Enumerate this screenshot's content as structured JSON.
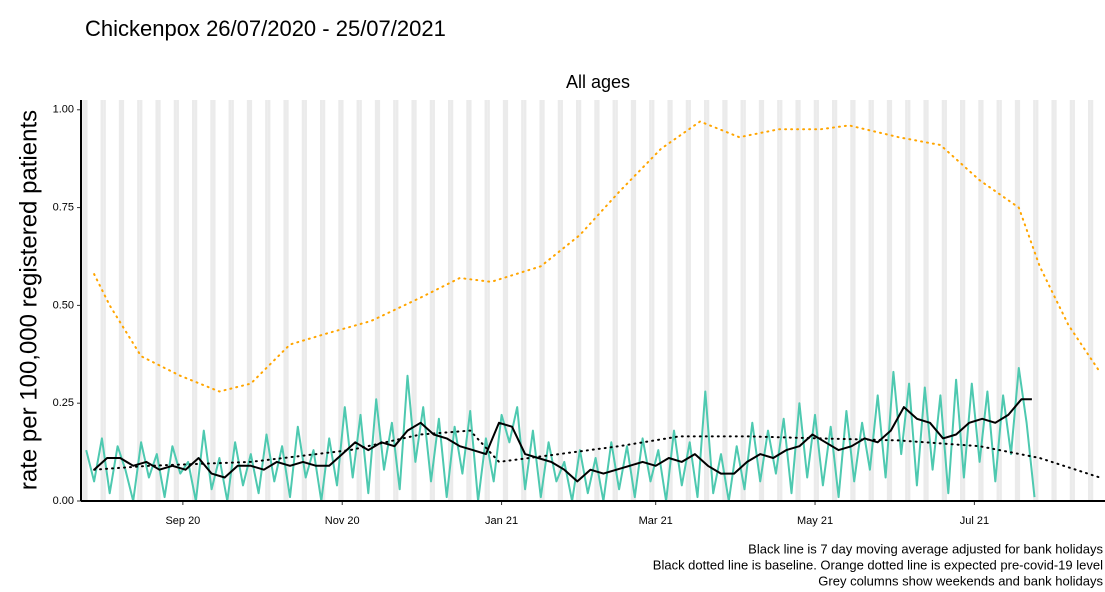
{
  "chart_data": {
    "type": "line",
    "title": "Chickenpox 26/07/2020 - 25/07/2021",
    "facet": "All ages",
    "ylabel": "rate per 100,000 registered patients",
    "notes": [
      "Black line is 7 day moving average adjusted for bank holidays",
      "Black dotted line is baseline. Orange dotted line is expected pre-covid-19 level",
      "Grey columns show weekends and bank holidays"
    ],
    "xlim": [
      -2,
      390
    ],
    "ylim": [
      0,
      1.025
    ],
    "xticks": [
      {
        "value": 37,
        "label": "Sep 20"
      },
      {
        "value": 98,
        "label": "Nov 20"
      },
      {
        "value": 159,
        "label": "Jan 21"
      },
      {
        "value": 218,
        "label": "Mar 21"
      },
      {
        "value": 279,
        "label": "May 21"
      },
      {
        "value": 340,
        "label": "Jul 21"
      }
    ],
    "yticks": [
      {
        "value": 0,
        "label": "0.00"
      },
      {
        "value": 0.25,
        "label": "0.25"
      },
      {
        "value": 0.5,
        "label": "0.50"
      },
      {
        "value": 0.75,
        "label": "0.75"
      },
      {
        "value": 1,
        "label": "1.00"
      }
    ],
    "series": [
      {
        "color": "#4ec9b0",
        "width": 2,
        "style": "solid",
        "x": [
          0,
          3,
          6,
          9,
          12,
          15,
          18,
          21,
          24,
          27,
          30,
          33,
          36,
          39,
          42,
          45,
          48,
          51,
          54,
          57,
          60,
          63,
          66,
          69,
          72,
          75,
          78,
          81,
          84,
          87,
          90,
          93,
          96,
          99,
          102,
          105,
          108,
          111,
          114,
          117,
          120,
          123,
          126,
          129,
          132,
          135,
          138,
          141,
          144,
          147,
          150,
          153,
          156,
          159,
          162,
          165,
          168,
          171,
          174,
          177,
          180,
          183,
          186,
          189,
          192,
          195,
          198,
          201,
          204,
          207,
          210,
          213,
          216,
          219,
          222,
          225,
          228,
          231,
          234,
          237,
          240,
          243,
          246,
          249,
          252,
          255,
          258,
          261,
          264,
          267,
          270,
          273,
          276,
          279,
          282,
          285,
          288,
          291,
          294,
          297,
          300,
          303,
          306,
          309,
          312,
          315,
          318,
          321,
          324,
          327,
          330,
          333,
          336,
          339,
          342,
          345,
          348,
          351,
          354,
          357,
          360,
          363
        ],
        "values": [
          0.13,
          0.05,
          0.16,
          0.02,
          0.14,
          0.08,
          0.0,
          0.15,
          0.06,
          0.12,
          0.01,
          0.14,
          0.07,
          0.1,
          0.0,
          0.18,
          0.03,
          0.11,
          0.0,
          0.15,
          0.04,
          0.12,
          0.02,
          0.17,
          0.05,
          0.14,
          0.01,
          0.19,
          0.06,
          0.13,
          0.0,
          0.16,
          0.04,
          0.24,
          0.06,
          0.22,
          0.02,
          0.26,
          0.08,
          0.2,
          0.03,
          0.32,
          0.1,
          0.24,
          0.05,
          0.21,
          0.01,
          0.19,
          0.07,
          0.23,
          0.0,
          0.16,
          0.05,
          0.22,
          0.15,
          0.24,
          0.03,
          0.18,
          0.01,
          0.15,
          0.05,
          0.1,
          0.0,
          0.13,
          0.02,
          0.11,
          0.0,
          0.15,
          0.03,
          0.14,
          0.01,
          0.16,
          0.05,
          0.13,
          0.0,
          0.18,
          0.04,
          0.15,
          0.01,
          0.28,
          0.02,
          0.12,
          0.0,
          0.14,
          0.03,
          0.2,
          0.05,
          0.18,
          0.07,
          0.21,
          0.02,
          0.25,
          0.06,
          0.22,
          0.04,
          0.19,
          0.01,
          0.23,
          0.05,
          0.2,
          0.08,
          0.27,
          0.06,
          0.33,
          0.12,
          0.3,
          0.04,
          0.29,
          0.08,
          0.27,
          0.02,
          0.31,
          0.06,
          0.3,
          0.1,
          0.28,
          0.05,
          0.27,
          0.12,
          0.34,
          0.2,
          0.01
        ]
      },
      {
        "color": "#000000",
        "width": 2,
        "style": "solid",
        "x": [
          3,
          8,
          13,
          18,
          23,
          28,
          33,
          38,
          43,
          48,
          53,
          58,
          63,
          68,
          73,
          78,
          83,
          88,
          93,
          98,
          103,
          108,
          113,
          118,
          123,
          128,
          133,
          138,
          143,
          148,
          153,
          158,
          163,
          168,
          173,
          178,
          183,
          188,
          193,
          198,
          203,
          208,
          213,
          218,
          223,
          228,
          233,
          238,
          243,
          248,
          253,
          258,
          263,
          268,
          273,
          278,
          283,
          288,
          293,
          298,
          303,
          308,
          313,
          318,
          323,
          328,
          333,
          338,
          343,
          348,
          353,
          358,
          362
        ],
        "values": [
          0.08,
          0.11,
          0.11,
          0.09,
          0.1,
          0.08,
          0.09,
          0.08,
          0.11,
          0.07,
          0.06,
          0.09,
          0.09,
          0.08,
          0.1,
          0.09,
          0.1,
          0.09,
          0.09,
          0.12,
          0.15,
          0.13,
          0.15,
          0.14,
          0.18,
          0.2,
          0.17,
          0.16,
          0.14,
          0.13,
          0.12,
          0.2,
          0.19,
          0.12,
          0.11,
          0.1,
          0.08,
          0.05,
          0.08,
          0.07,
          0.08,
          0.09,
          0.1,
          0.09,
          0.11,
          0.1,
          0.12,
          0.09,
          0.07,
          0.07,
          0.1,
          0.12,
          0.11,
          0.13,
          0.14,
          0.17,
          0.15,
          0.13,
          0.14,
          0.16,
          0.15,
          0.18,
          0.24,
          0.21,
          0.2,
          0.16,
          0.17,
          0.2,
          0.21,
          0.2,
          0.22,
          0.26,
          0.26
        ]
      },
      {
        "color": "#000000",
        "width": 2,
        "style": "dotted",
        "x": [
          3,
          24,
          63,
          101,
          128,
          147,
          158,
          181,
          204,
          227,
          254,
          281,
          311,
          342,
          365,
          388
        ],
        "values": [
          0.08,
          0.09,
          0.1,
          0.13,
          0.17,
          0.18,
          0.1,
          0.12,
          0.14,
          0.165,
          0.165,
          0.16,
          0.155,
          0.14,
          0.11,
          0.06
        ]
      },
      {
        "color": "#ffa500",
        "width": 2,
        "style": "dotted",
        "x": [
          3,
          9,
          21,
          36,
          51,
          63,
          78,
          93,
          109,
          128,
          143,
          155,
          174,
          189,
          204,
          220,
          235,
          250,
          265,
          281,
          292,
          311,
          327,
          342,
          357,
          365,
          376,
          388
        ],
        "values": [
          0.58,
          0.5,
          0.37,
          0.32,
          0.28,
          0.3,
          0.4,
          0.43,
          0.46,
          0.52,
          0.57,
          0.56,
          0.6,
          0.68,
          0.79,
          0.9,
          0.97,
          0.93,
          0.95,
          0.95,
          0.96,
          0.93,
          0.91,
          0.82,
          0.75,
          0.6,
          0.45,
          0.33
        ]
      }
    ]
  }
}
